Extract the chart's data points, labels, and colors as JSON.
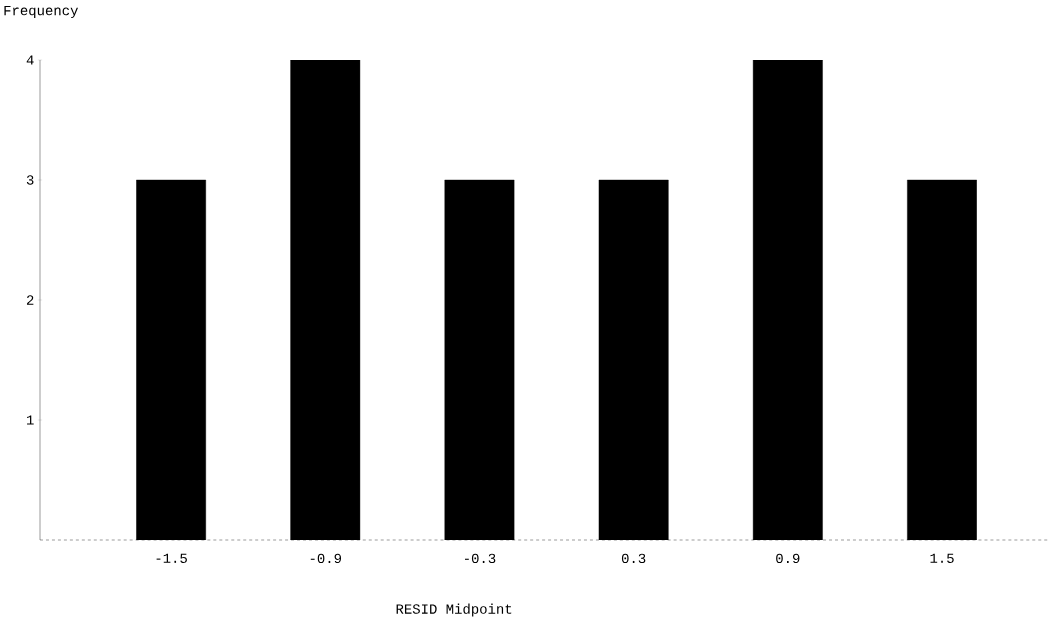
{
  "chart_data": {
    "type": "bar",
    "ylabel": "Frequency",
    "xlabel": "RESID Midpoint",
    "categories": [
      "-1.5",
      "-0.9",
      "-0.3",
      "0.3",
      "0.9",
      "1.5"
    ],
    "values": [
      3,
      4,
      3,
      3,
      4,
      3
    ],
    "color": "#000000",
    "ylim": [
      0,
      4
    ],
    "yticks": [
      1,
      2,
      3,
      4
    ]
  }
}
